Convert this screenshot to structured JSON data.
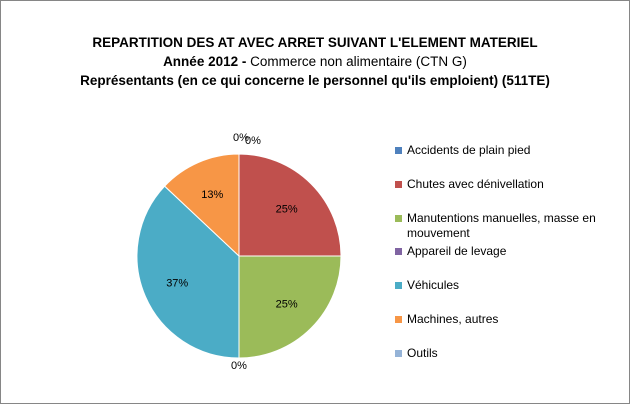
{
  "chart_data": {
    "type": "pie",
    "title": "REPARTITION DES AT AVEC ARRET SUIVANT L'ELEMENT MATERIEL",
    "subtitle_bold": "Année 2012  -",
    "subtitle_normal": " Commerce non alimentaire (CTN G)",
    "subtitle2": "Représentants (en ce qui concerne le personnel qu'ils emploient) (511TE)",
    "legend_position": "right",
    "slices": [
      {
        "name": "Accidents de plain pied",
        "value": 0,
        "label": "0%",
        "color": "#4f81bd"
      },
      {
        "name": "Chutes avec dénivellation",
        "value": 25,
        "label": "25%",
        "color": "#c0504d"
      },
      {
        "name": "Manutentions manuelles, masse en mouvement",
        "value": 25,
        "label": "25%",
        "color": "#9bbb59"
      },
      {
        "name": "Appareil de levage",
        "value": 0,
        "label": "0%",
        "color": "#8064a2"
      },
      {
        "name": "Véhicules",
        "value": 37,
        "label": "37%",
        "color": "#4bacc6"
      },
      {
        "name": "Machines, autres",
        "value": 13,
        "label": "13%",
        "color": "#f79646"
      },
      {
        "name": "Outils",
        "value": 0,
        "label": "0%",
        "color": "#95b3d7"
      }
    ]
  }
}
